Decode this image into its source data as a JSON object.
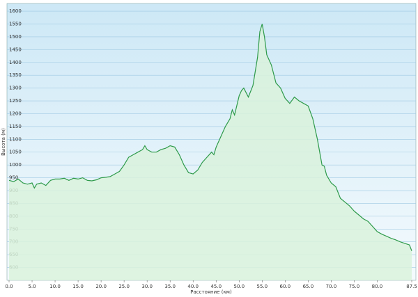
{
  "chart_data": {
    "type": "area",
    "xlabel": "Расстояние (км)",
    "ylabel": "Высота (м)",
    "x": [
      0,
      1,
      2,
      3,
      4,
      5,
      5.5,
      6,
      7,
      8,
      9,
      10,
      11,
      12,
      13,
      14,
      15,
      16,
      17,
      18,
      19,
      20,
      21,
      22,
      23,
      24,
      25,
      26,
      27,
      28,
      29,
      29.5,
      30,
      31,
      32,
      33,
      34,
      35,
      36,
      37,
      38,
      39,
      40,
      41,
      42,
      43,
      44,
      44.5,
      45,
      46,
      47,
      48,
      48.5,
      49,
      50,
      50.5,
      51,
      52,
      53,
      54,
      54.5,
      55,
      55.5,
      56,
      57,
      58,
      59,
      60,
      61,
      62,
      63,
      64,
      65,
      66,
      67,
      68,
      68.5,
      69,
      70,
      71,
      72,
      73,
      74,
      75,
      76,
      77,
      78,
      79,
      80,
      81,
      82,
      83,
      84,
      85,
      86,
      87,
      87.5
    ],
    "values": [
      940,
      935,
      945,
      930,
      925,
      930,
      910,
      925,
      930,
      920,
      940,
      945,
      945,
      948,
      940,
      948,
      945,
      950,
      940,
      938,
      942,
      950,
      952,
      955,
      965,
      975,
      1000,
      1030,
      1040,
      1050,
      1060,
      1075,
      1060,
      1050,
      1050,
      1060,
      1065,
      1075,
      1070,
      1040,
      1000,
      970,
      965,
      980,
      1010,
      1030,
      1050,
      1040,
      1070,
      1110,
      1150,
      1180,
      1215,
      1195,
      1270,
      1290,
      1300,
      1265,
      1310,
      1420,
      1520,
      1550,
      1500,
      1430,
      1390,
      1320,
      1300,
      1260,
      1240,
      1265,
      1250,
      1240,
      1230,
      1180,
      1100,
      1000,
      995,
      960,
      930,
      915,
      870,
      855,
      840,
      820,
      805,
      790,
      780,
      760,
      740,
      730,
      722,
      714,
      708,
      700,
      694,
      688,
      665
    ],
    "color": "#2e9a4a",
    "fill": "#d9f2dc",
    "xlim": [
      0,
      87.5
    ],
    "ylim": [
      550,
      1630
    ],
    "xticks": [
      {
        "value": 0,
        "label": "0.0"
      },
      {
        "value": 5,
        "label": "5.0"
      },
      {
        "value": 10,
        "label": "10.0"
      },
      {
        "value": 15,
        "label": "15.0"
      },
      {
        "value": 20,
        "label": "20.0"
      },
      {
        "value": 25,
        "label": "25.0"
      },
      {
        "value": 30,
        "label": "30.0"
      },
      {
        "value": 35,
        "label": "35.0"
      },
      {
        "value": 40,
        "label": "40.0"
      },
      {
        "value": 45,
        "label": "45.0"
      },
      {
        "value": 50,
        "label": "50.0"
      },
      {
        "value": 55,
        "label": "55.0"
      },
      {
        "value": 60,
        "label": "60.0"
      },
      {
        "value": 65,
        "label": "65.0"
      },
      {
        "value": 70,
        "label": "70.0"
      },
      {
        "value": 75,
        "label": "75.0"
      },
      {
        "value": 80,
        "label": "80.0"
      },
      87.5
    ],
    "yticks": [
      600,
      650,
      700,
      750,
      800,
      850,
      900,
      950,
      1000,
      1050,
      1100,
      1150,
      1200,
      1250,
      1300,
      1350,
      1400,
      1450,
      1500,
      1550,
      1600
    ],
    "grid": true
  }
}
